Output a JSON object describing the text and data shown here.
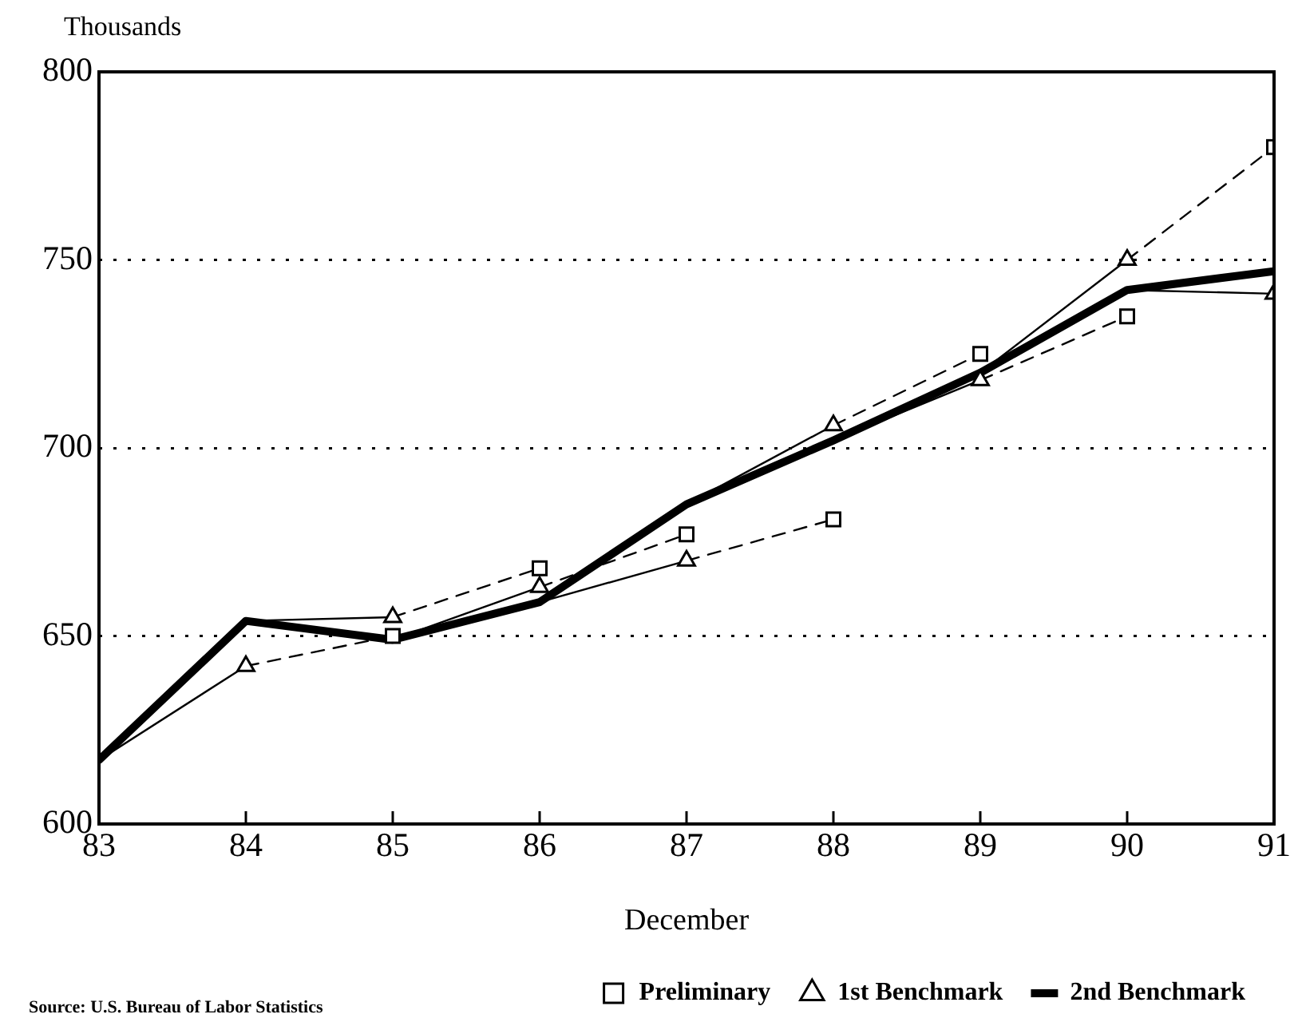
{
  "chart_data": {
    "type": "line",
    "ylabel": "Thousands",
    "xlabel": "December",
    "annotations": [
      "Source: U.S. Bureau of Labor Statistics"
    ],
    "xlim": [
      83,
      91
    ],
    "xticks": [
      83,
      84,
      85,
      86,
      87,
      88,
      89,
      90,
      91
    ],
    "ylim": [
      600,
      800
    ],
    "yticks": [
      600,
      650,
      700,
      750,
      800
    ],
    "grid": "y",
    "legend": "bottom right",
    "series": [
      {
        "color": "#000000",
        "line_style": "dashed",
        "marker": "none",
        "x": [
          84,
          85
        ],
        "values": [
          642,
          650
        ]
      },
      {
        "color": "#000000",
        "line_style": "dashed",
        "marker": "none",
        "x": [
          85,
          86
        ],
        "values": [
          655,
          668
        ]
      },
      {
        "color": "#000000",
        "line_style": "dashed",
        "marker": "none",
        "x": [
          86,
          87
        ],
        "values": [
          663,
          677
        ]
      },
      {
        "color": "#000000",
        "line_style": "dashed",
        "marker": "none",
        "x": [
          87,
          88
        ],
        "values": [
          670,
          681
        ]
      },
      {
        "color": "#000000",
        "line_style": "dashed",
        "marker": "none",
        "x": [
          88,
          89
        ],
        "values": [
          706,
          725
        ]
      },
      {
        "color": "#000000",
        "line_style": "dashed",
        "marker": "none",
        "x": [
          89,
          90
        ],
        "values": [
          718,
          735
        ]
      },
      {
        "color": "#000000",
        "line_style": "dashed",
        "marker": "none",
        "x": [
          90,
          91
        ],
        "values": [
          750,
          780
        ]
      },
      {
        "color": "#000000",
        "line_style": "solid",
        "marker": "none",
        "x": [
          83,
          84
        ],
        "values": [
          617,
          642
        ]
      },
      {
        "color": "#000000",
        "line_style": "solid",
        "marker": "none",
        "x": [
          84,
          85
        ],
        "values": [
          654,
          655
        ]
      },
      {
        "color": "#000000",
        "line_style": "solid",
        "marker": "none",
        "x": [
          85,
          86
        ],
        "values": [
          649,
          663
        ]
      },
      {
        "color": "#000000",
        "line_style": "solid",
        "marker": "none",
        "x": [
          86,
          87
        ],
        "values": [
          659,
          670
        ]
      },
      {
        "color": "#000000",
        "line_style": "solid",
        "marker": "none",
        "x": [
          87,
          88
        ],
        "values": [
          685,
          706
        ]
      },
      {
        "color": "#000000",
        "line_style": "solid",
        "marker": "none",
        "x": [
          88,
          89
        ],
        "values": [
          702,
          718
        ]
      },
      {
        "color": "#000000",
        "line_style": "solid",
        "marker": "none",
        "x": [
          89,
          90
        ],
        "values": [
          720,
          750
        ]
      },
      {
        "color": "#000000",
        "line_style": "solid",
        "marker": "none",
        "x": [
          90,
          91
        ],
        "values": [
          742,
          741
        ]
      },
      {
        "name": "2nd Benchmark",
        "color": "#000000",
        "line_style": "solid",
        "marker": "none",
        "x": [
          83,
          84,
          85,
          86,
          87,
          88,
          89,
          90,
          91
        ],
        "values": [
          617,
          654,
          649,
          659,
          685,
          702,
          720,
          742,
          747
        ]
      },
      {
        "type": "scatter",
        "name": "Preliminary",
        "color": "#000000",
        "line_style": "dashed",
        "marker": "square",
        "x": [
          85,
          86,
          87,
          88,
          89,
          90,
          91
        ],
        "values": [
          650,
          668,
          677,
          681,
          725,
          735,
          780
        ]
      },
      {
        "type": "scatter",
        "name": "1st Benchmark",
        "color": "#000000",
        "line_style": "solid",
        "marker": "triangle",
        "x": [
          84,
          85,
          86,
          87,
          88,
          89,
          90,
          91
        ],
        "values": [
          642,
          655,
          663,
          670,
          706,
          718,
          750,
          741
        ]
      }
    ]
  }
}
